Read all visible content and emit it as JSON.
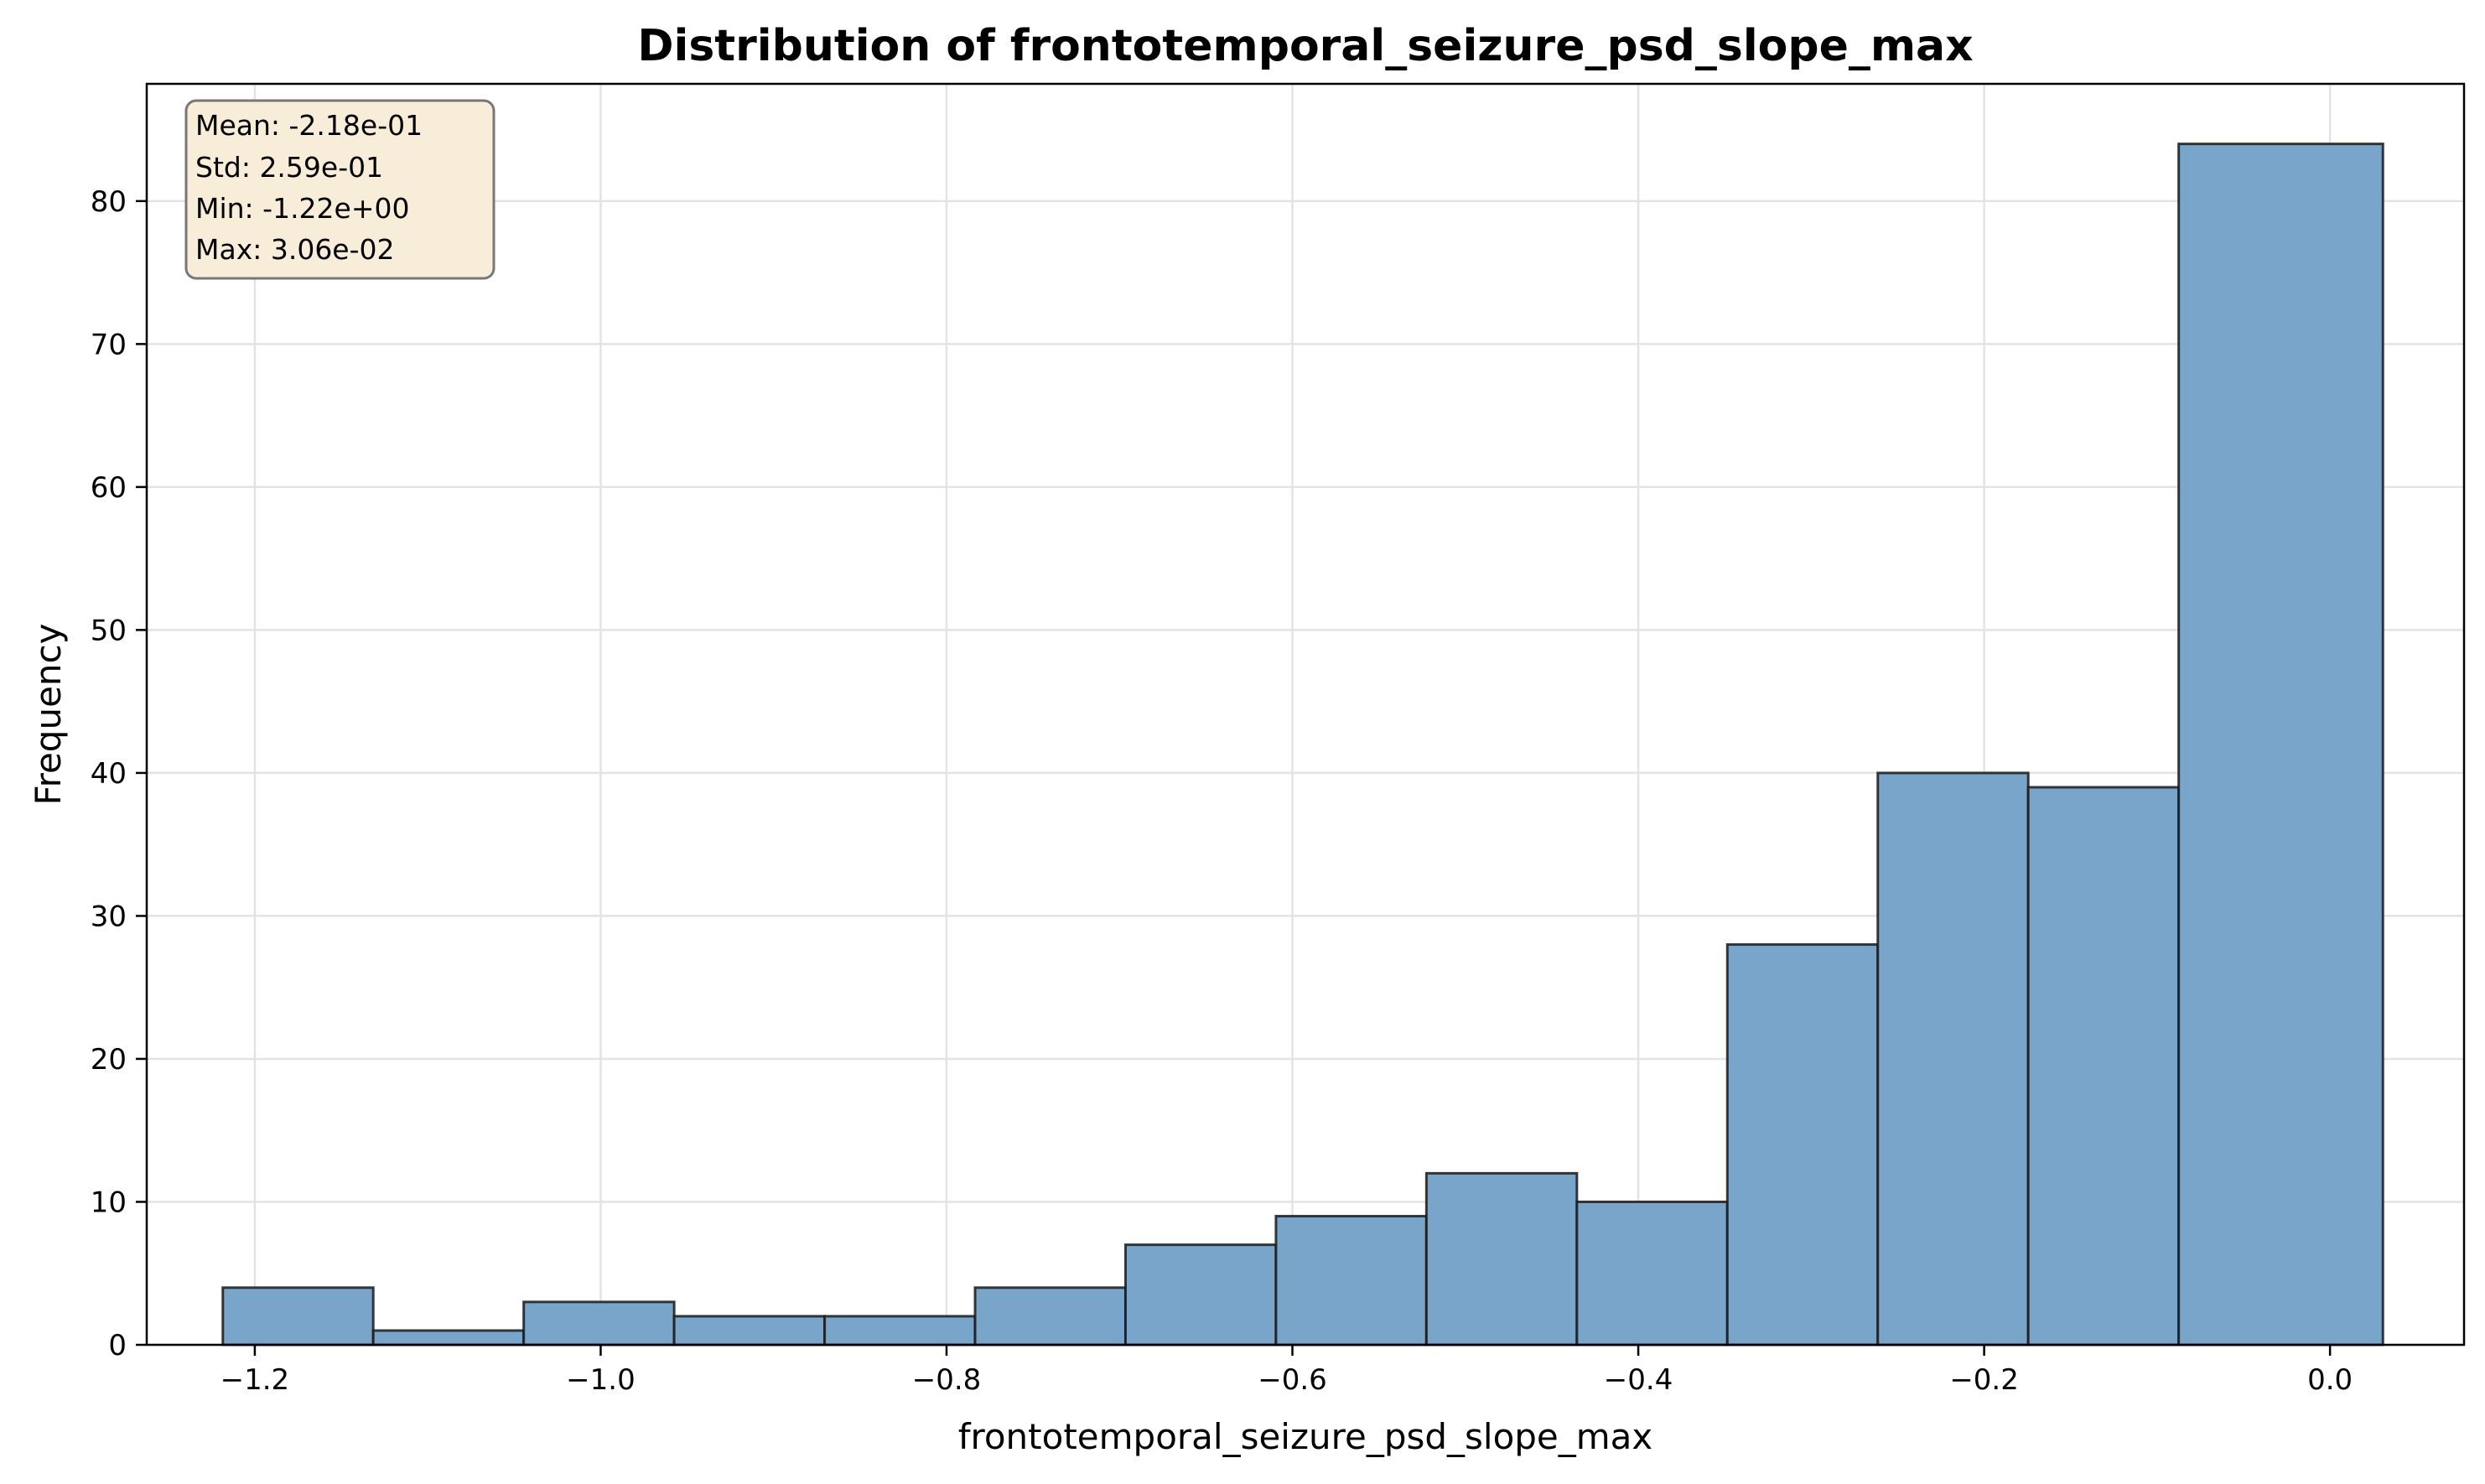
{
  "chart_data": {
    "type": "bar",
    "title": "Distribution of frontotemporal_seizure_psd_slope_max",
    "xlabel": "frontotemporal_seizure_psd_slope_max",
    "ylabel": "Frequency",
    "xlim": [
      -1.2625,
      0.0775
    ],
    "ylim": [
      0,
      88.2
    ],
    "x_ticks": [
      -1.2,
      -1.0,
      -0.8,
      -0.6,
      -0.4,
      -0.2,
      0.0
    ],
    "x_tick_labels": [
      "−1.2",
      "−1.0",
      "−0.8",
      "−0.6",
      "−0.4",
      "−0.2",
      "0.0"
    ],
    "y_ticks": [
      0,
      10,
      20,
      30,
      40,
      50,
      60,
      70,
      80
    ],
    "y_tick_labels": [
      "0",
      "10",
      "20",
      "30",
      "40",
      "50",
      "60",
      "70",
      "80"
    ],
    "bin_edges": [
      -1.2185,
      -1.1315,
      -1.0445,
      -0.9575,
      -0.8705,
      -0.7835,
      -0.6965,
      -0.6095,
      -0.5225,
      -0.4355,
      -0.3485,
      -0.2615,
      -0.1745,
      -0.0875,
      0.0306
    ],
    "values": [
      4,
      1,
      3,
      2,
      2,
      4,
      7,
      9,
      12,
      10,
      28,
      40,
      39,
      84
    ],
    "grid": true,
    "legend": "none",
    "stats_box": {
      "position": "top-left",
      "lines": [
        "Mean: -2.18e-01",
        "Std: 2.59e-01",
        "Min: -1.22e+00",
        "Max: 3.06e-02"
      ]
    },
    "colors": {
      "bar_fill": "#7aa5cb",
      "bar_edge": "#1a1a1a",
      "grid": "#e3e3e3",
      "stats_fill": "#f8edd8",
      "stats_edge": "#777777"
    }
  }
}
